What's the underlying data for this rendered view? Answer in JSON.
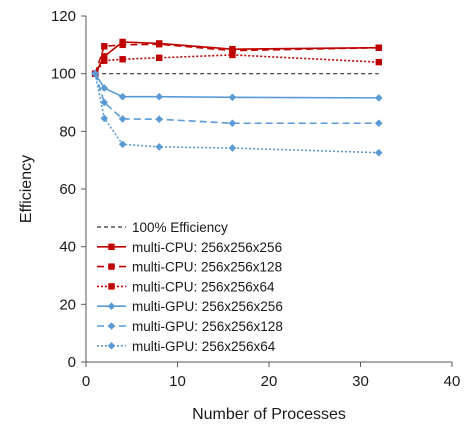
{
  "chart_data": {
    "type": "line",
    "xlabel": "Number of Processes",
    "ylabel": "Efficiency",
    "xlim": [
      0,
      40
    ],
    "ylim": [
      0,
      120
    ],
    "xticks": [
      0,
      10,
      20,
      30,
      40
    ],
    "yticks": [
      0,
      20,
      40,
      60,
      80,
      100,
      120
    ],
    "grid": false,
    "legend_position": "bottom-left",
    "reference_line": {
      "name": "100% Efficiency",
      "x": [
        1,
        32
      ],
      "y": [
        100,
        100
      ],
      "color": "#333333",
      "style": "dashed"
    },
    "series": [
      {
        "name": "multi-CPU: 256x256x256",
        "x": [
          1,
          2,
          4,
          8,
          16,
          32
        ],
        "y": [
          100,
          106,
          111,
          110.5,
          108.5,
          109
        ],
        "color": "#c00000",
        "style": "solid",
        "marker": "square"
      },
      {
        "name": "multi-CPU: 256x256x128",
        "x": [
          1,
          2,
          4,
          8,
          16,
          32
        ],
        "y": [
          100,
          109.5,
          110,
          110.2,
          108,
          109
        ],
        "color": "#c00000",
        "style": "dashed",
        "marker": "square"
      },
      {
        "name": "multi-CPU: 256x256x64",
        "x": [
          1,
          2,
          4,
          8,
          16,
          32
        ],
        "y": [
          100,
          104.5,
          105,
          105.5,
          106.5,
          104
        ],
        "color": "#c00000",
        "style": "dotted",
        "marker": "square"
      },
      {
        "name": "multi-GPU: 256x256x256",
        "x": [
          1,
          2,
          4,
          8,
          16,
          32
        ],
        "y": [
          100,
          95,
          92,
          92,
          91.8,
          91.6
        ],
        "color": "#5b9bd5",
        "style": "solid",
        "marker": "diamond"
      },
      {
        "name": "multi-GPU: 256x256x128",
        "x": [
          1,
          2,
          4,
          8,
          16,
          32
        ],
        "y": [
          100,
          90,
          84.3,
          84.2,
          82.8,
          82.8
        ],
        "color": "#5b9bd5",
        "style": "dashed",
        "marker": "diamond"
      },
      {
        "name": "multi-GPU: 256x256x64",
        "x": [
          1,
          2,
          4,
          8,
          16,
          32
        ],
        "y": [
          100,
          84.5,
          75.5,
          74.6,
          74.2,
          72.6
        ],
        "color": "#5b9bd5",
        "style": "dotted",
        "marker": "diamond"
      }
    ]
  }
}
